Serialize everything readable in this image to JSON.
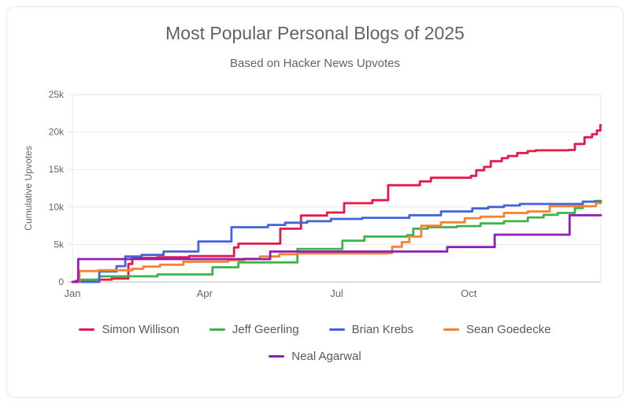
{
  "header": {
    "title": "Most Popular Personal Blogs of 2025",
    "subtitle": "Based on Hacker News Upvotes"
  },
  "chart_data": {
    "type": "line",
    "interpolation": "step-after",
    "title": "Most Popular Personal Blogs of 2025",
    "subtitle": "Based on Hacker News Upvotes",
    "xlabel": "",
    "ylabel": "Cumulative Upvotes",
    "x_unit": "months of 2025 (0 = Jan 1, 12 = Dec 31)",
    "ylim": [
      0,
      25000
    ],
    "xlim": [
      0,
      12
    ],
    "grid": "horizontal",
    "legend_position": "bottom",
    "yticks": [
      {
        "v": 0,
        "label": "0"
      },
      {
        "v": 5000,
        "label": "5k"
      },
      {
        "v": 10000,
        "label": "10k"
      },
      {
        "v": 15000,
        "label": "15k"
      },
      {
        "v": 20000,
        "label": "20k"
      },
      {
        "v": 25000,
        "label": "25k"
      }
    ],
    "xticks": [
      {
        "m": 0,
        "label": "Jan"
      },
      {
        "m": 3,
        "label": "Apr"
      },
      {
        "m": 6,
        "label": "Jul"
      },
      {
        "m": 9,
        "label": "Oct"
      }
    ],
    "series": [
      {
        "name": "Simon Willison",
        "color": "#e6194b",
        "final_value": 20900,
        "points": [
          [
            0,
            0
          ],
          [
            0.07,
            150
          ],
          [
            0.5,
            300
          ],
          [
            0.89,
            450
          ],
          [
            1.27,
            2400
          ],
          [
            1.36,
            3200
          ],
          [
            1.93,
            3300
          ],
          [
            2.65,
            3450
          ],
          [
            3.67,
            4600
          ],
          [
            3.77,
            5100
          ],
          [
            4.72,
            7100
          ],
          [
            5.19,
            8850
          ],
          [
            5.78,
            9250
          ],
          [
            6.17,
            10500
          ],
          [
            6.81,
            10900
          ],
          [
            7.17,
            12900
          ],
          [
            7.89,
            13400
          ],
          [
            8.14,
            13900
          ],
          [
            9.05,
            14150
          ],
          [
            9.17,
            14900
          ],
          [
            9.35,
            15350
          ],
          [
            9.5,
            16100
          ],
          [
            9.75,
            16500
          ],
          [
            9.89,
            16800
          ],
          [
            10.1,
            17200
          ],
          [
            10.34,
            17450
          ],
          [
            10.52,
            17550
          ],
          [
            11.27,
            17600
          ],
          [
            11.41,
            18400
          ],
          [
            11.63,
            19300
          ],
          [
            11.8,
            19700
          ],
          [
            11.91,
            20200
          ],
          [
            11.99,
            20900
          ],
          [
            12,
            20900
          ]
        ]
      },
      {
        "name": "Jeff Geerling",
        "color": "#3cb44b",
        "final_value": 10800,
        "points": [
          [
            0,
            0
          ],
          [
            0.14,
            300
          ],
          [
            0.61,
            750
          ],
          [
            1.93,
            1000
          ],
          [
            3.18,
            1950
          ],
          [
            3.77,
            2600
          ],
          [
            5.11,
            4400
          ],
          [
            6.13,
            5500
          ],
          [
            6.63,
            6050
          ],
          [
            7.6,
            6250
          ],
          [
            7.74,
            7100
          ],
          [
            8.07,
            7300
          ],
          [
            8.73,
            7450
          ],
          [
            9.27,
            7800
          ],
          [
            9.8,
            8100
          ],
          [
            10.34,
            8600
          ],
          [
            10.7,
            8950
          ],
          [
            11.02,
            9200
          ],
          [
            11.41,
            9850
          ],
          [
            11.59,
            10700
          ],
          [
            11.86,
            10800
          ],
          [
            12,
            10800
          ]
        ]
      },
      {
        "name": "Brian Krebs",
        "color": "#4363d8",
        "final_value": 10700,
        "points": [
          [
            0,
            0
          ],
          [
            0.61,
            1400
          ],
          [
            1,
            2100
          ],
          [
            1.2,
            3400
          ],
          [
            1.57,
            3600
          ],
          [
            2.07,
            4050
          ],
          [
            2.86,
            5400
          ],
          [
            3.61,
            7300
          ],
          [
            4.44,
            7600
          ],
          [
            4.83,
            7900
          ],
          [
            5.33,
            8100
          ],
          [
            5.87,
            8400
          ],
          [
            6.58,
            8550
          ],
          [
            7.65,
            8900
          ],
          [
            8.37,
            9400
          ],
          [
            9.08,
            9800
          ],
          [
            9.44,
            10000
          ],
          [
            9.8,
            10200
          ],
          [
            10.16,
            10400
          ],
          [
            11.59,
            10700
          ],
          [
            12,
            10700
          ]
        ]
      },
      {
        "name": "Sean Goedecke",
        "color": "#f58231",
        "final_value": 10500,
        "points": [
          [
            0,
            0
          ],
          [
            0.16,
            1450
          ],
          [
            0.59,
            1550
          ],
          [
            1.36,
            1750
          ],
          [
            1.61,
            2050
          ],
          [
            1.99,
            2300
          ],
          [
            2.52,
            2700
          ],
          [
            3.54,
            2900
          ],
          [
            3.9,
            3100
          ],
          [
            4.26,
            3400
          ],
          [
            4.7,
            3700
          ],
          [
            5.11,
            3800
          ],
          [
            7.15,
            3850
          ],
          [
            7.26,
            4700
          ],
          [
            7.48,
            5300
          ],
          [
            7.65,
            6050
          ],
          [
            7.92,
            7500
          ],
          [
            8.37,
            7950
          ],
          [
            8.91,
            8500
          ],
          [
            9.27,
            8700
          ],
          [
            9.8,
            9200
          ],
          [
            10.34,
            9400
          ],
          [
            10.84,
            10100
          ],
          [
            11.89,
            10500
          ],
          [
            12,
            10500
          ]
        ]
      },
      {
        "name": "Neal Agarwal",
        "color": "#911eb4",
        "final_value": 8900,
        "points": [
          [
            0,
            0
          ],
          [
            0.13,
            3050
          ],
          [
            4.49,
            4050
          ],
          [
            8.51,
            4650
          ],
          [
            9.59,
            6300
          ],
          [
            11.29,
            8900
          ],
          [
            12,
            8900
          ]
        ]
      }
    ],
    "style": {
      "grid_color": "#e8e8e8",
      "axis_color": "#c9c9c9",
      "text_color": "#666666",
      "title_color": "#5f6368",
      "line_width": 2.8
    }
  }
}
